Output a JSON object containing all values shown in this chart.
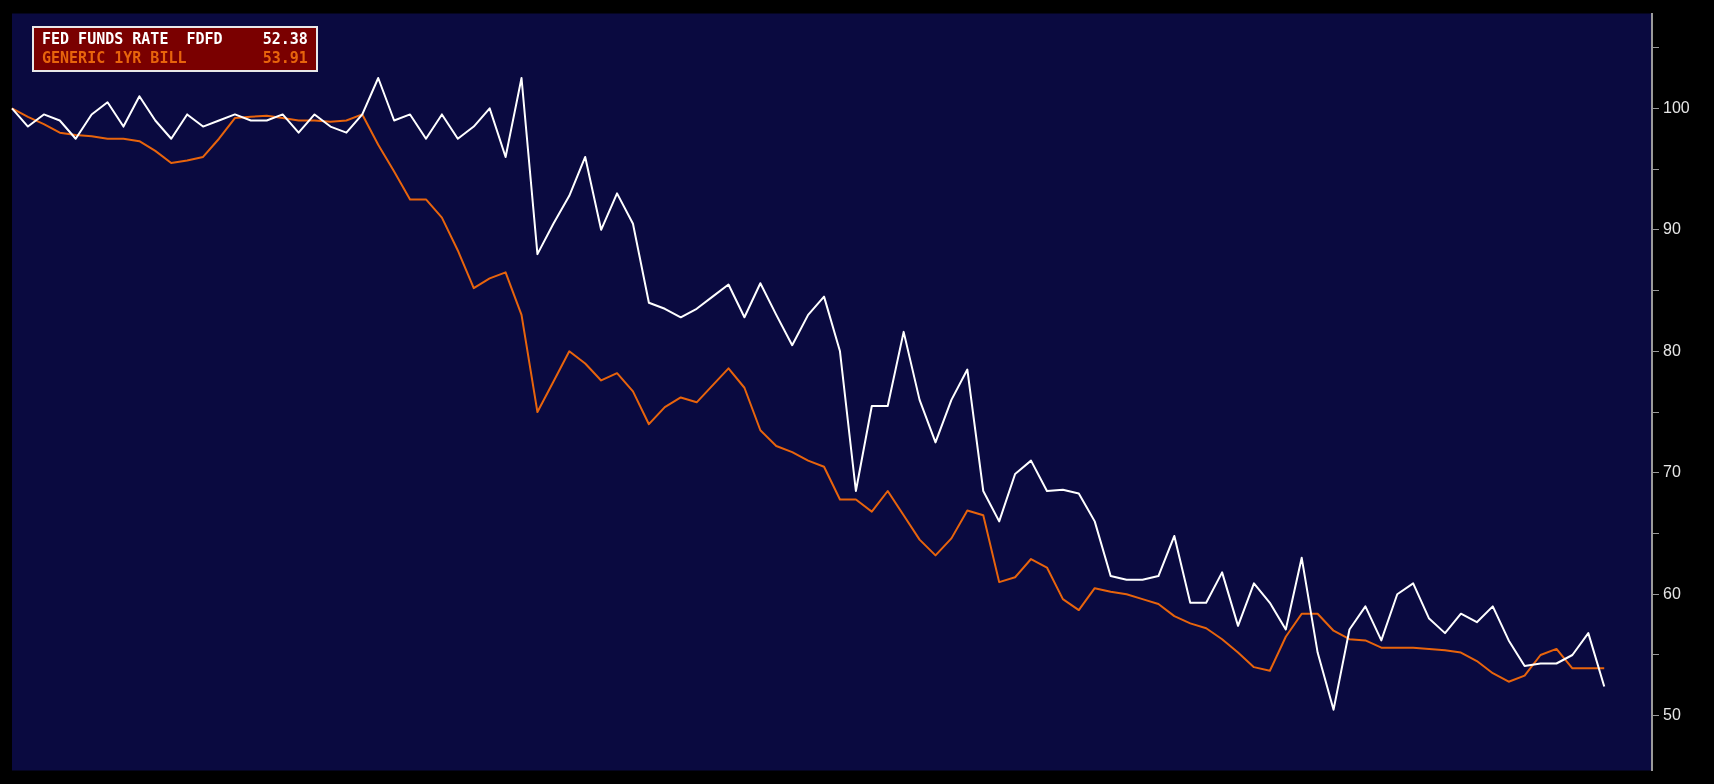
{
  "chart_data": {
    "type": "line",
    "categories": [
      null,
      null,
      null,
      null,
      null,
      null,
      null,
      null,
      null,
      null,
      null,
      null,
      null,
      null,
      null,
      null,
      null,
      null,
      null,
      null,
      null,
      null,
      null,
      null,
      null,
      null,
      null,
      null,
      null,
      null,
      null,
      null,
      null,
      null,
      null,
      null,
      null,
      null,
      null,
      null,
      null,
      null,
      null,
      null,
      null,
      null,
      null,
      null,
      null,
      null,
      null,
      null,
      null,
      null,
      null,
      null,
      null,
      null,
      null,
      null,
      null,
      null,
      null,
      null,
      null,
      null,
      null,
      null,
      null,
      null,
      null,
      null,
      null,
      null,
      null,
      null,
      null,
      null,
      null,
      null,
      null,
      null,
      null,
      null,
      null,
      null,
      null,
      null,
      null,
      null,
      null,
      null,
      null,
      null,
      null,
      null,
      null,
      null,
      null,
      null,
      null,
      null,
      null,
      null
    ],
    "series": [
      {
        "name": "FED FUNDS RATE  FDFD",
        "color": "#ffffff",
        "values": [
          100,
          98.5,
          99.5,
          99,
          97.5,
          99.5,
          100.5,
          98.5,
          101,
          99,
          97.5,
          99.5,
          98.5,
          99,
          99.5,
          99,
          99,
          99.5,
          98,
          99.5,
          98.5,
          98,
          99.5,
          102.5,
          99,
          99.5,
          97.5,
          99.5,
          97.5,
          98.5,
          100,
          96,
          102.5,
          88,
          90.5,
          92.8,
          96,
          90,
          93,
          90.5,
          84,
          83.5,
          82.8,
          83.5,
          84.5,
          85.5,
          82.8,
          85.6,
          83,
          80.5,
          83,
          84.5,
          80,
          68.5,
          75.5,
          75.5,
          81.6,
          76,
          72.5,
          76,
          78.5,
          68.5,
          66,
          69.9,
          71,
          68.5,
          68.6,
          68.3,
          66,
          61.5,
          61.2,
          61.2,
          61.5,
          64.8,
          59.3,
          59.3,
          61.8,
          57.4,
          60.9,
          59.3,
          57.1,
          63,
          55.2,
          50.5,
          57.1,
          59,
          56.2,
          60,
          60.9,
          58,
          56.8,
          58.4,
          57.7,
          59,
          56.2,
          54.1,
          54.3,
          54.3,
          55,
          56.8,
          52.4,
          null,
          null,
          null
        ]
      },
      {
        "name": "GENERIC 1YR BILL",
        "color": "#e8640c",
        "values": [
          100,
          99.3,
          98.7,
          98,
          97.8,
          97.7,
          97.5,
          97.5,
          97.3,
          96.5,
          95.5,
          95.7,
          96,
          97.5,
          99.2,
          99.3,
          99.4,
          99.2,
          99,
          99,
          98.9,
          99,
          99.5,
          97,
          94.8,
          92.5,
          92.5,
          91,
          88.3,
          85.2,
          86,
          86.5,
          83,
          75,
          77.5,
          80,
          79,
          77.6,
          78.2,
          76.7,
          74,
          75.4,
          76.2,
          75.8,
          77.2,
          78.6,
          77,
          73.5,
          72.2,
          71.7,
          71,
          70.5,
          67.8,
          67.8,
          66.8,
          68.5,
          66.5,
          64.5,
          63.2,
          64.6,
          66.9,
          66.5,
          61,
          61.4,
          62.9,
          62.2,
          59.6,
          58.7,
          60.5,
          60.2,
          60,
          59.6,
          59.2,
          58.2,
          57.6,
          57.2,
          56.3,
          55.2,
          54,
          53.7,
          56.5,
          58.4,
          58.4,
          57,
          56.3,
          56.2,
          55.6,
          55.6,
          55.6,
          55.5,
          55.4,
          55.2,
          54.5,
          53.5,
          52.8,
          53.3,
          55,
          55.5,
          53.9,
          53.9,
          53.9,
          null,
          null,
          null
        ]
      }
    ],
    "ylim": [
      45.5,
      107.8
    ],
    "yticks": [
      50,
      {
        "value": 55,
        "label": null
      },
      60,
      {
        "value": 65,
        "label": null
      },
      70,
      {
        "value": 75,
        "label": null
      },
      80,
      {
        "value": 85,
        "label": null
      },
      90,
      {
        "value": 95,
        "label": null
      },
      100,
      {
        "value": 105,
        "label": null
      }
    ],
    "tick_labels": "y",
    "annotations": [
      "52.38",
      "53.91"
    ],
    "legend": "top left",
    "marker": "none",
    "line_style": "solid"
  }
}
